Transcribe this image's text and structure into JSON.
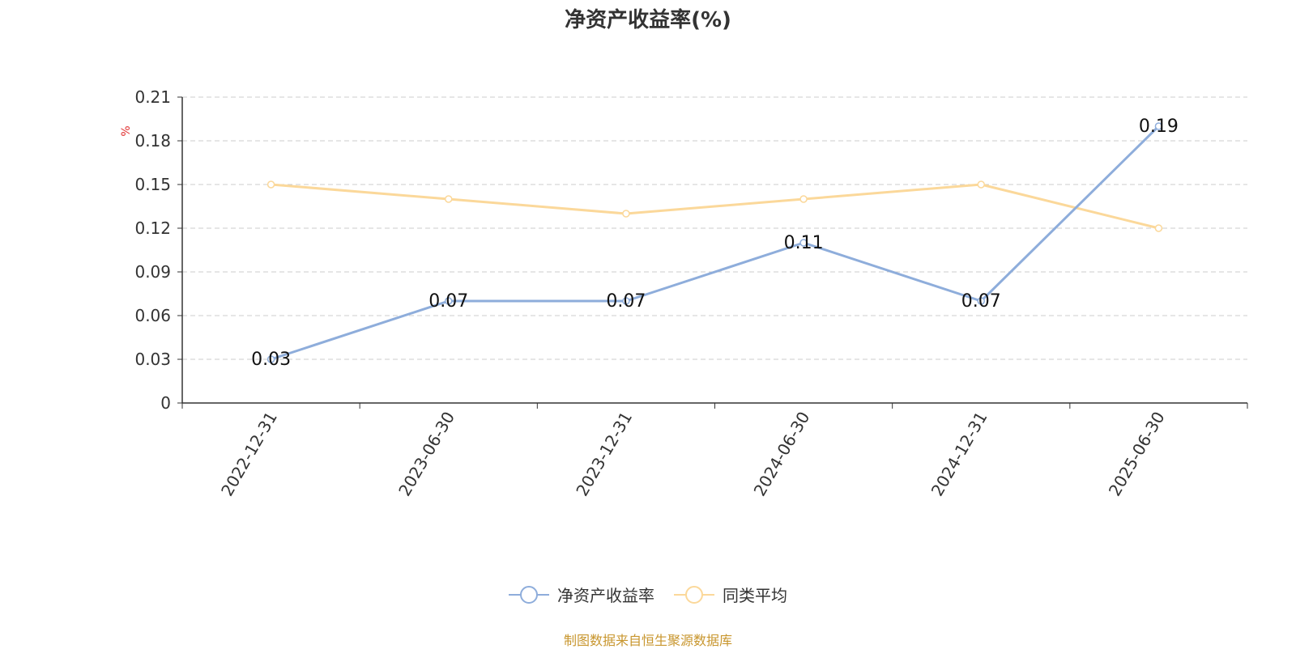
{
  "chart_data": {
    "type": "line",
    "title": "净资产收益率(%)",
    "ylabel": "%",
    "categories": [
      "2022-12-31",
      "2023-06-30",
      "2023-12-31",
      "2024-06-30",
      "2024-12-31",
      "2025-06-30"
    ],
    "ylim": [
      0,
      0.21
    ],
    "yticks": [
      "0",
      "0.03",
      "0.06",
      "0.09",
      "0.12",
      "0.15",
      "0.18",
      "0.21"
    ],
    "grid": true,
    "legend_position": "bottom-center",
    "series": [
      {
        "name": "净资产收益率",
        "color": "#8eaddb",
        "values": [
          0.03,
          0.07,
          0.07,
          0.11,
          0.07,
          0.19
        ],
        "labels": [
          "0.03",
          "0.07",
          "0.07",
          "0.11",
          "0.07",
          "0.19"
        ],
        "show_labels": true
      },
      {
        "name": "同类平均",
        "color": "#fbd89a",
        "values": [
          0.15,
          0.14,
          0.13,
          0.14,
          0.15,
          0.12
        ],
        "show_labels": false
      }
    ]
  },
  "footer": {
    "source": "制图数据来自恒生聚源数据库"
  }
}
